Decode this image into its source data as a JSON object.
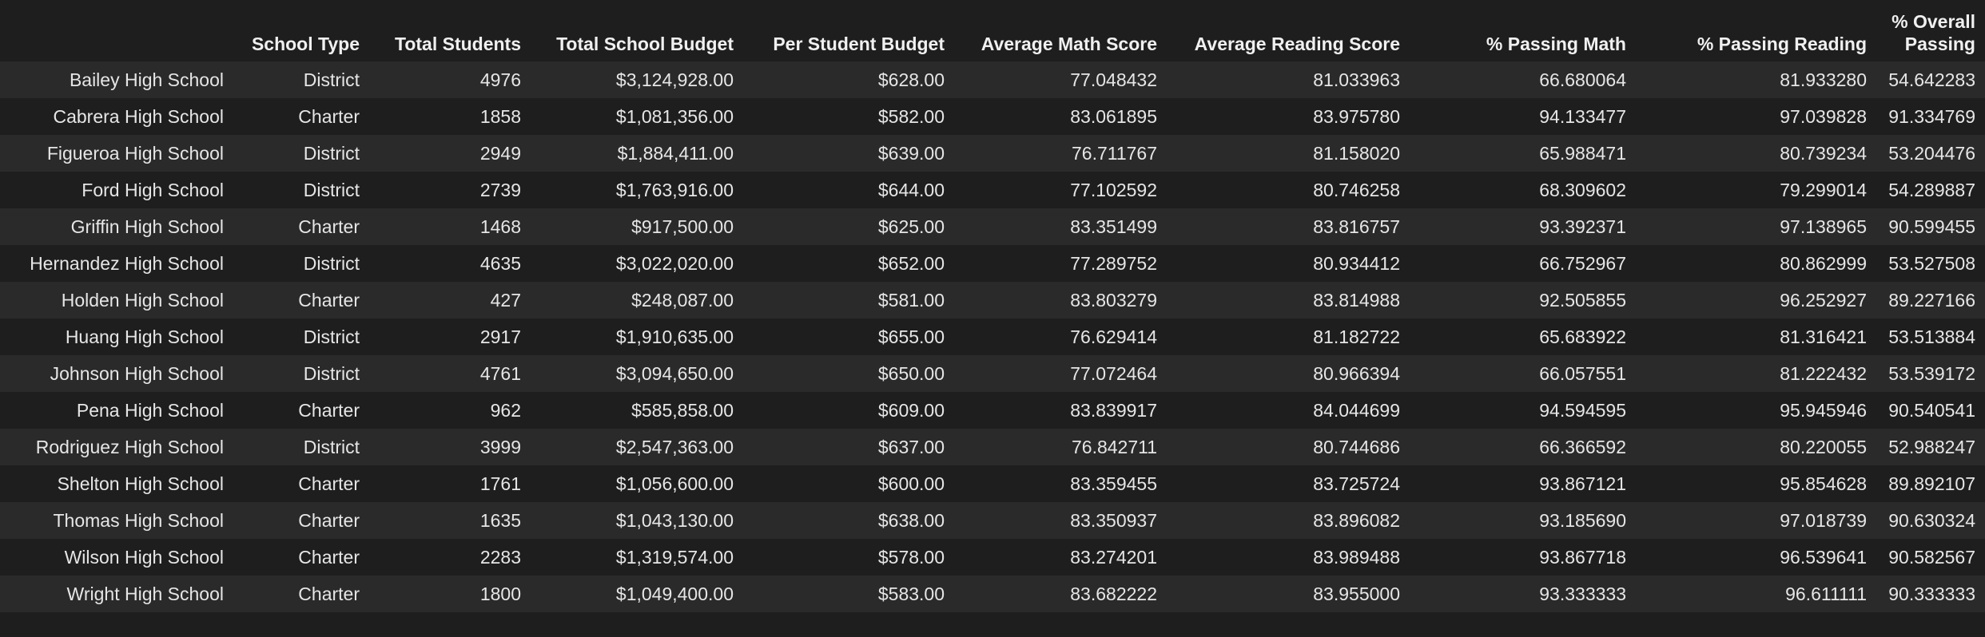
{
  "table": {
    "columns": [
      {
        "key": "name",
        "label": ""
      },
      {
        "key": "type",
        "label": "School Type"
      },
      {
        "key": "students",
        "label": "Total Students"
      },
      {
        "key": "budget",
        "label": "Total School Budget"
      },
      {
        "key": "per_student",
        "label": "Per Student Budget"
      },
      {
        "key": "math_score",
        "label": "Average Math Score"
      },
      {
        "key": "reading_score",
        "label": "Average Reading Score"
      },
      {
        "key": "pass_math",
        "label": "% Passing Math"
      },
      {
        "key": "pass_reading",
        "label": "% Passing Reading"
      },
      {
        "key": "overall",
        "label": "% Overall Passing"
      }
    ],
    "rows": [
      {
        "name": "Bailey High School",
        "type": "District",
        "students": "4976",
        "budget": "$3,124,928.00",
        "per_student": "$628.00",
        "math_score": "77.048432",
        "reading_score": "81.033963",
        "pass_math": "66.680064",
        "pass_reading": "81.933280",
        "overall": "54.642283"
      },
      {
        "name": "Cabrera High School",
        "type": "Charter",
        "students": "1858",
        "budget": "$1,081,356.00",
        "per_student": "$582.00",
        "math_score": "83.061895",
        "reading_score": "83.975780",
        "pass_math": "94.133477",
        "pass_reading": "97.039828",
        "overall": "91.334769"
      },
      {
        "name": "Figueroa High School",
        "type": "District",
        "students": "2949",
        "budget": "$1,884,411.00",
        "per_student": "$639.00",
        "math_score": "76.711767",
        "reading_score": "81.158020",
        "pass_math": "65.988471",
        "pass_reading": "80.739234",
        "overall": "53.204476"
      },
      {
        "name": "Ford High School",
        "type": "District",
        "students": "2739",
        "budget": "$1,763,916.00",
        "per_student": "$644.00",
        "math_score": "77.102592",
        "reading_score": "80.746258",
        "pass_math": "68.309602",
        "pass_reading": "79.299014",
        "overall": "54.289887"
      },
      {
        "name": "Griffin High School",
        "type": "Charter",
        "students": "1468",
        "budget": "$917,500.00",
        "per_student": "$625.00",
        "math_score": "83.351499",
        "reading_score": "83.816757",
        "pass_math": "93.392371",
        "pass_reading": "97.138965",
        "overall": "90.599455"
      },
      {
        "name": "Hernandez High School",
        "type": "District",
        "students": "4635",
        "budget": "$3,022,020.00",
        "per_student": "$652.00",
        "math_score": "77.289752",
        "reading_score": "80.934412",
        "pass_math": "66.752967",
        "pass_reading": "80.862999",
        "overall": "53.527508"
      },
      {
        "name": "Holden High School",
        "type": "Charter",
        "students": "427",
        "budget": "$248,087.00",
        "per_student": "$581.00",
        "math_score": "83.803279",
        "reading_score": "83.814988",
        "pass_math": "92.505855",
        "pass_reading": "96.252927",
        "overall": "89.227166"
      },
      {
        "name": "Huang High School",
        "type": "District",
        "students": "2917",
        "budget": "$1,910,635.00",
        "per_student": "$655.00",
        "math_score": "76.629414",
        "reading_score": "81.182722",
        "pass_math": "65.683922",
        "pass_reading": "81.316421",
        "overall": "53.513884"
      },
      {
        "name": "Johnson High School",
        "type": "District",
        "students": "4761",
        "budget": "$3,094,650.00",
        "per_student": "$650.00",
        "math_score": "77.072464",
        "reading_score": "80.966394",
        "pass_math": "66.057551",
        "pass_reading": "81.222432",
        "overall": "53.539172"
      },
      {
        "name": "Pena High School",
        "type": "Charter",
        "students": "962",
        "budget": "$585,858.00",
        "per_student": "$609.00",
        "math_score": "83.839917",
        "reading_score": "84.044699",
        "pass_math": "94.594595",
        "pass_reading": "95.945946",
        "overall": "90.540541"
      },
      {
        "name": "Rodriguez High School",
        "type": "District",
        "students": "3999",
        "budget": "$2,547,363.00",
        "per_student": "$637.00",
        "math_score": "76.842711",
        "reading_score": "80.744686",
        "pass_math": "66.366592",
        "pass_reading": "80.220055",
        "overall": "52.988247"
      },
      {
        "name": "Shelton High School",
        "type": "Charter",
        "students": "1761",
        "budget": "$1,056,600.00",
        "per_student": "$600.00",
        "math_score": "83.359455",
        "reading_score": "83.725724",
        "pass_math": "93.867121",
        "pass_reading": "95.854628",
        "overall": "89.892107"
      },
      {
        "name": "Thomas High School",
        "type": "Charter",
        "students": "1635",
        "budget": "$1,043,130.00",
        "per_student": "$638.00",
        "math_score": "83.350937",
        "reading_score": "83.896082",
        "pass_math": "93.185690",
        "pass_reading": "97.018739",
        "overall": "90.630324"
      },
      {
        "name": "Wilson High School",
        "type": "Charter",
        "students": "2283",
        "budget": "$1,319,574.00",
        "per_student": "$578.00",
        "math_score": "83.274201",
        "reading_score": "83.989488",
        "pass_math": "93.867718",
        "pass_reading": "96.539641",
        "overall": "90.582567"
      },
      {
        "name": "Wright High School",
        "type": "Charter",
        "students": "1800",
        "budget": "$1,049,400.00",
        "per_student": "$583.00",
        "math_score": "83.682222",
        "reading_score": "83.955000",
        "pass_math": "93.333333",
        "pass_reading": "96.611111",
        "overall": "90.333333"
      }
    ]
  },
  "colors": {
    "background": "#1e1e1e",
    "row_alt": "#2a2a2a",
    "text": "#e6e6e6"
  }
}
